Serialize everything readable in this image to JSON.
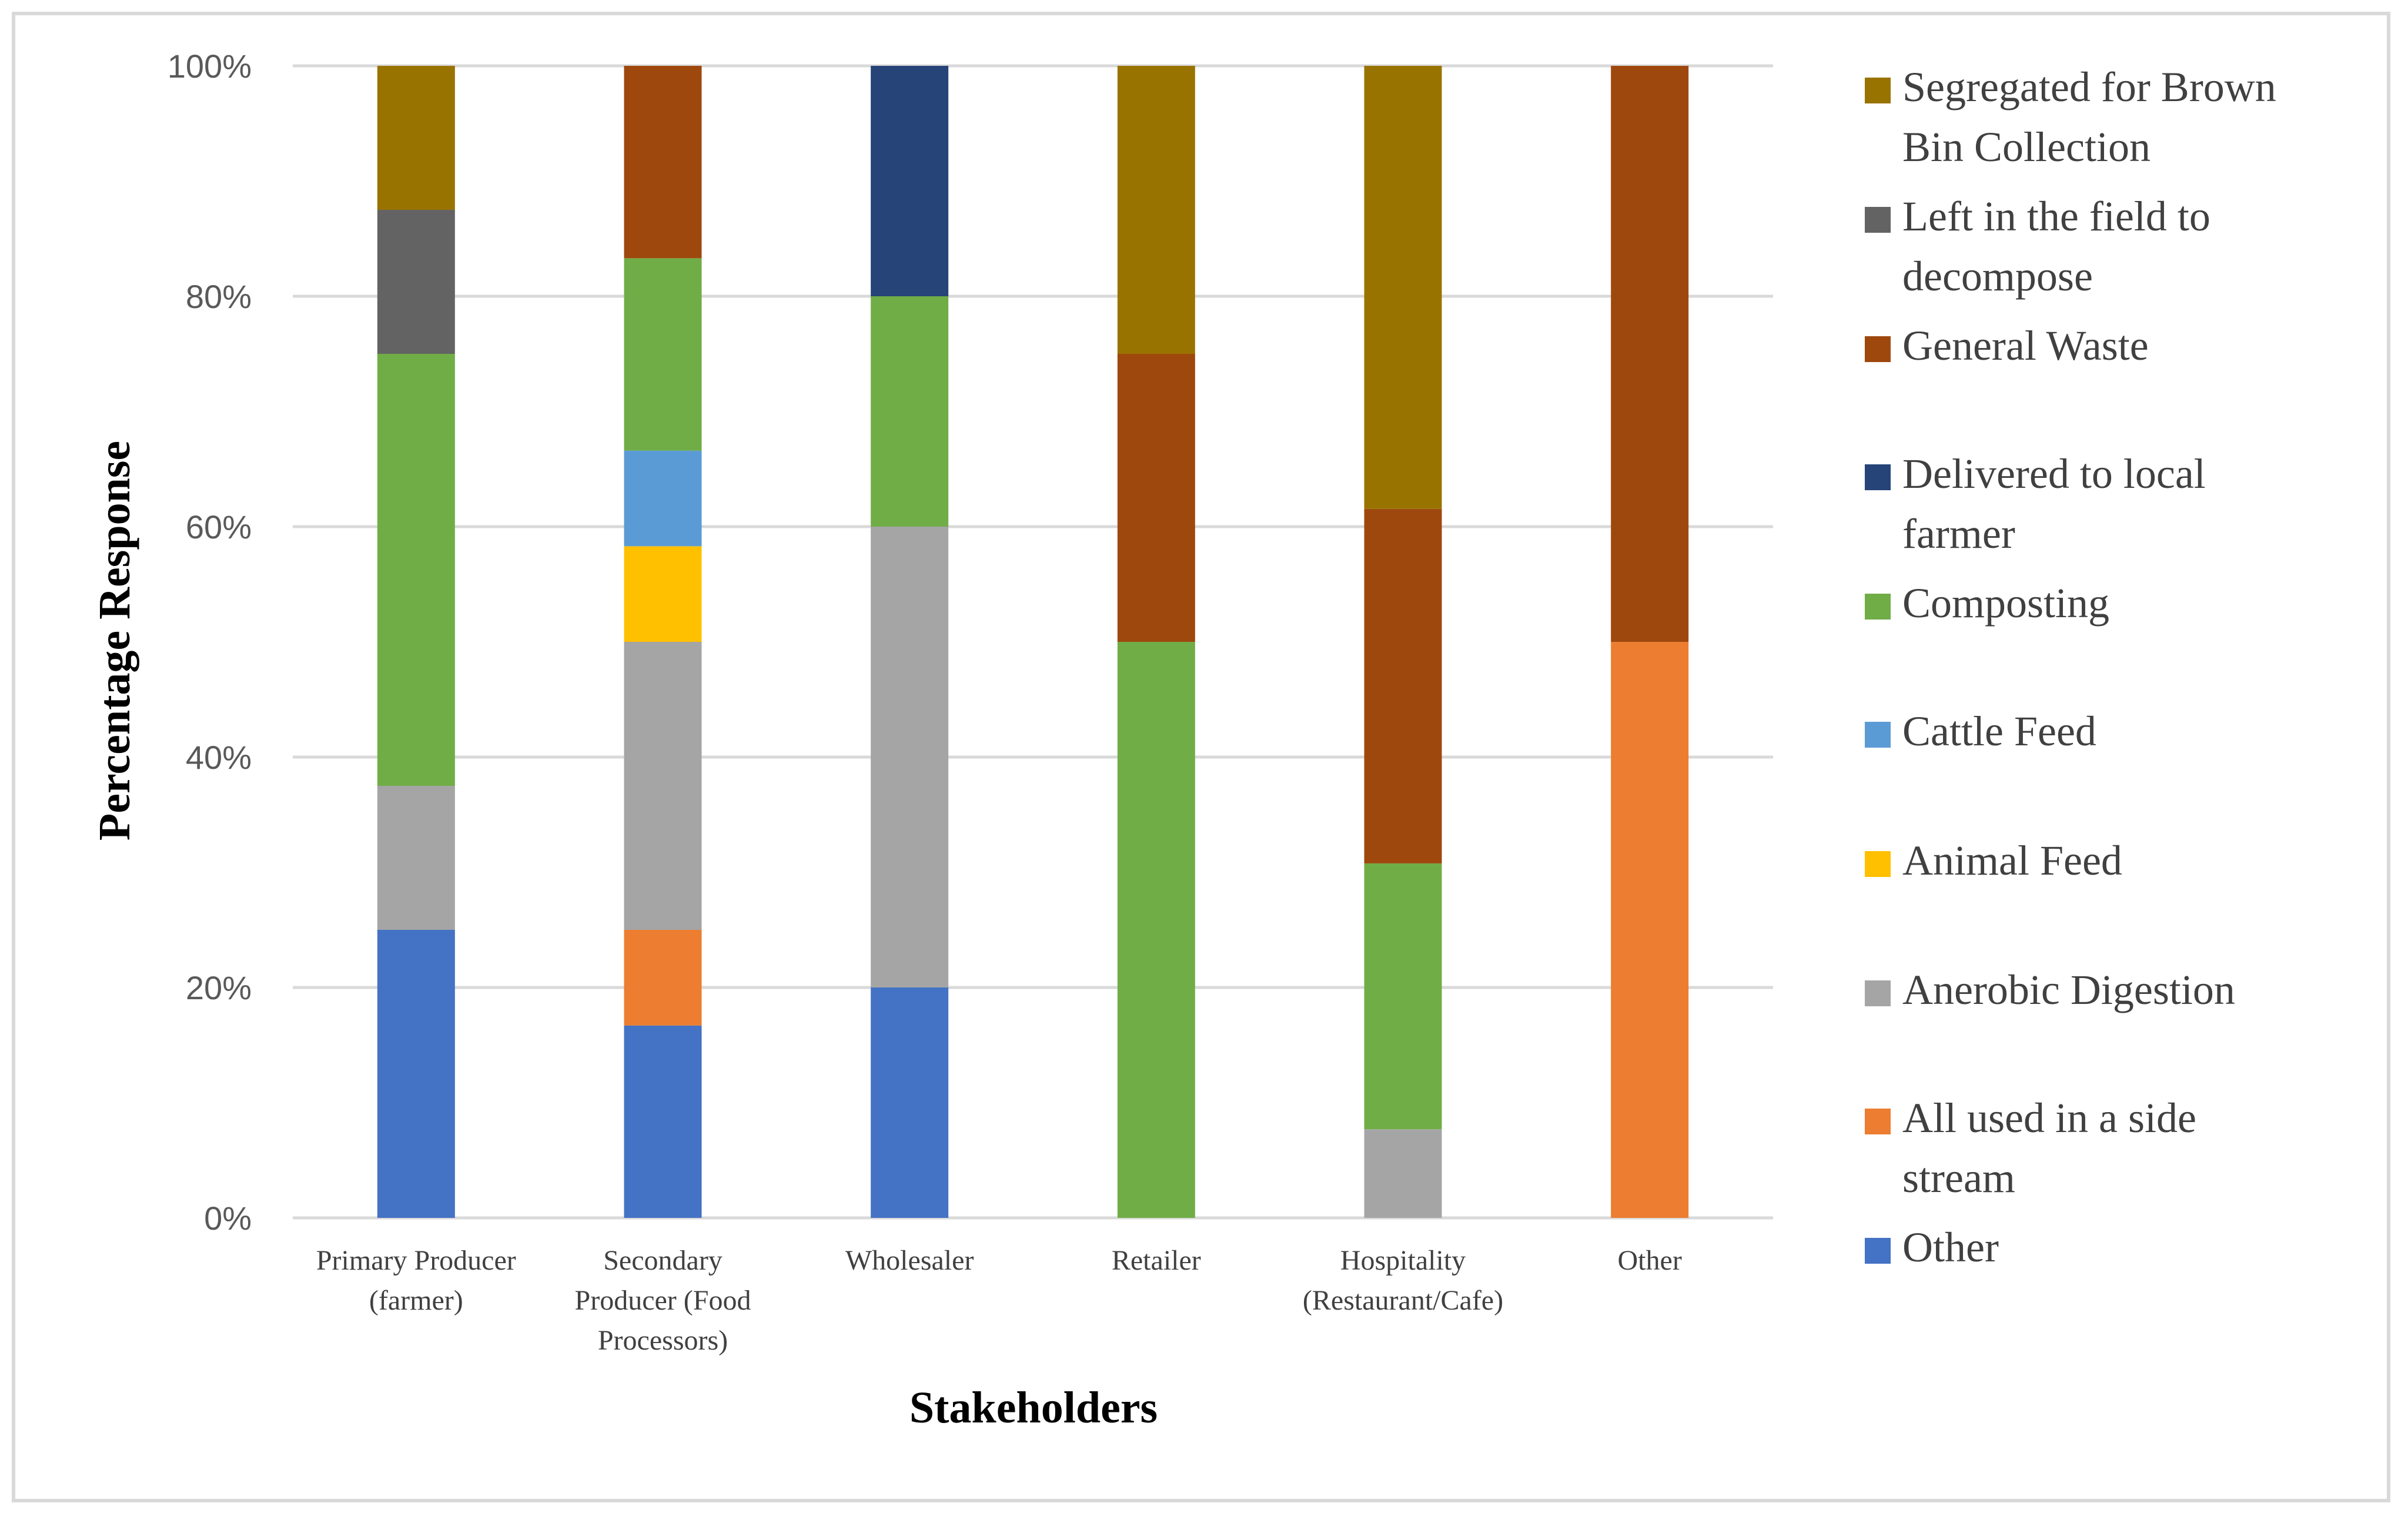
{
  "chart_data": {
    "type": "bar",
    "stacked": true,
    "normalized": true,
    "title": "",
    "xlabel": "Stakeholders",
    "ylabel": "Percentage Response",
    "ylim": [
      0,
      100
    ],
    "yticks": [
      "0%",
      "20%",
      "40%",
      "60%",
      "80%",
      "100%"
    ],
    "ytick_values": [
      0,
      20,
      40,
      60,
      80,
      100
    ],
    "grid": true,
    "legend_position": "right",
    "categories": [
      [
        "Primary Producer",
        "(farmer)"
      ],
      [
        "Secondary",
        "Producer (Food",
        "Processors)"
      ],
      [
        "Wholesaler"
      ],
      [
        "Retailer"
      ],
      [
        "Hospitality",
        "(Restaurant/Cafe)"
      ],
      [
        "Other"
      ]
    ],
    "series": [
      {
        "name": "Other",
        "legend_lines": [
          "Other"
        ],
        "color": "#4472C4",
        "values": [
          25,
          16.7,
          20,
          0,
          0,
          0
        ]
      },
      {
        "name": "All used in a side stream",
        "legend_lines": [
          "All used in a side",
          "stream"
        ],
        "color": "#ED7D31",
        "values": [
          0,
          8.3,
          0,
          0,
          0,
          50
        ]
      },
      {
        "name": "Anerobic Digestion",
        "legend_lines": [
          "Anerobic Digestion"
        ],
        "color": "#A5A5A5",
        "values": [
          12.5,
          25,
          40,
          0,
          7.7,
          0
        ]
      },
      {
        "name": "Animal Feed",
        "legend_lines": [
          "Animal Feed"
        ],
        "color": "#FFC000",
        "values": [
          0,
          8.3,
          0,
          0,
          0,
          0
        ]
      },
      {
        "name": "Cattle Feed",
        "legend_lines": [
          "Cattle Feed"
        ],
        "color": "#5B9BD5",
        "values": [
          0,
          8.3,
          0,
          0,
          0,
          0
        ]
      },
      {
        "name": "Composting",
        "legend_lines": [
          "Composting"
        ],
        "color": "#70AD47",
        "values": [
          37.5,
          16.7,
          20,
          50,
          23.1,
          0
        ]
      },
      {
        "name": "Delivered to local farmer",
        "legend_lines": [
          "Delivered to local",
          "farmer"
        ],
        "color": "#264478",
        "values": [
          0,
          0,
          20,
          0,
          0,
          0
        ]
      },
      {
        "name": "General Waste",
        "legend_lines": [
          "General Waste"
        ],
        "color": "#9E480E",
        "values": [
          0,
          16.7,
          0,
          25,
          30.8,
          50
        ]
      },
      {
        "name": "Left in the field to decompose",
        "legend_lines": [
          "Left in the field to",
          "decompose"
        ],
        "color": "#636363",
        "values": [
          12.5,
          0,
          0,
          0,
          0,
          0
        ]
      },
      {
        "name": "Segregated for Brown Bin Collection",
        "legend_lines": [
          "Segregated for Brown",
          "Bin Collection"
        ],
        "color": "#997300",
        "values": [
          12.5,
          0,
          0,
          25,
          38.5,
          0
        ]
      }
    ]
  }
}
